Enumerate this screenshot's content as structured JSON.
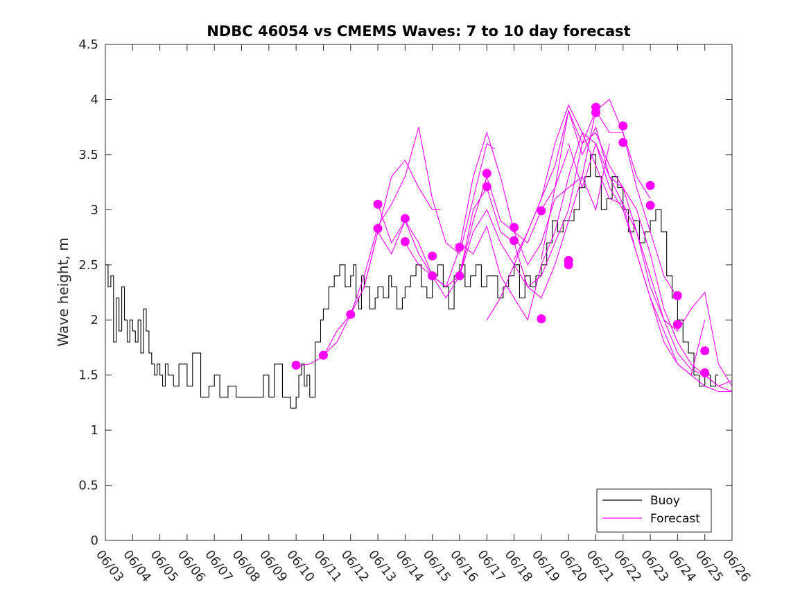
{
  "chart_data": {
    "type": "line",
    "title": "NDBC 46054 vs CMEMS Waves: 7 to 10 day forecast",
    "xlabel": "",
    "ylabel": "Wave height, m",
    "xlim": [
      0,
      23
    ],
    "ylim": [
      0,
      4.5
    ],
    "x_ticks": [
      "06/03",
      "06/04",
      "06/05",
      "06/06",
      "06/07",
      "06/08",
      "06/09",
      "06/10",
      "06/11",
      "06/12",
      "06/13",
      "06/14",
      "06/15",
      "06/16",
      "06/17",
      "06/18",
      "06/19",
      "06/20",
      "06/21",
      "06/22",
      "06/23",
      "06/24",
      "06/25",
      "06/26"
    ],
    "y_ticks": [
      "0",
      "0.5",
      "1",
      "1.5",
      "2",
      "2.5",
      "3",
      "3.5",
      "4",
      "4.5"
    ],
    "legend": {
      "position": "bottom-right",
      "entries": [
        "Buoy",
        "Forecast"
      ]
    },
    "grid": false,
    "colors": {
      "buoy": "#000000",
      "forecast": "#ff00ff"
    },
    "series": [
      {
        "name": "Buoy",
        "x": [
          0,
          0.1,
          0.2,
          0.3,
          0.4,
          0.5,
          0.6,
          0.7,
          0.8,
          0.9,
          1.0,
          1.1,
          1.2,
          1.3,
          1.4,
          1.5,
          1.6,
          1.7,
          1.8,
          1.9,
          2.0,
          2.1,
          2.2,
          2.3,
          2.5,
          2.7,
          3.0,
          3.2,
          3.5,
          3.8,
          4.0,
          4.2,
          4.5,
          4.8,
          5.0,
          5.2,
          5.5,
          5.8,
          6.0,
          6.2,
          6.5,
          6.8,
          7.0,
          7.1,
          7.2,
          7.3,
          7.4,
          7.5,
          7.7,
          7.9,
          8.0,
          8.2,
          8.4,
          8.6,
          8.8,
          9.0,
          9.1,
          9.2,
          9.3,
          9.4,
          9.5,
          9.7,
          9.9,
          10.0,
          10.2,
          10.4,
          10.5,
          10.7,
          10.9,
          11.0,
          11.2,
          11.4,
          11.6,
          11.8,
          12.0,
          12.2,
          12.4,
          12.6,
          12.8,
          13.0,
          13.2,
          13.4,
          13.6,
          13.8,
          14.0,
          14.2,
          14.4,
          14.6,
          14.8,
          15.0,
          15.2,
          15.4,
          15.6,
          15.8,
          16.0,
          16.2,
          16.4,
          16.6,
          16.8,
          17.0,
          17.2,
          17.4,
          17.6,
          17.8,
          18.0,
          18.2,
          18.4,
          18.6,
          18.8,
          19.0,
          19.2,
          19.4,
          19.6,
          19.8,
          20.0,
          20.2,
          20.4,
          20.6,
          20.8,
          21.0,
          21.2,
          21.4,
          21.6,
          21.8,
          22.0,
          22.2,
          22.4,
          22.5
        ],
        "y": [
          2.5,
          2.3,
          2.4,
          1.8,
          2.2,
          1.9,
          2.3,
          2.0,
          1.8,
          2.0,
          1.9,
          1.8,
          2.0,
          1.7,
          2.1,
          1.9,
          1.7,
          1.6,
          1.5,
          1.6,
          1.5,
          1.4,
          1.6,
          1.5,
          1.4,
          1.6,
          1.4,
          1.7,
          1.3,
          1.4,
          1.5,
          1.3,
          1.4,
          1.3,
          1.3,
          1.3,
          1.3,
          1.5,
          1.3,
          1.6,
          1.3,
          1.2,
          1.3,
          1.5,
          1.6,
          1.4,
          1.5,
          1.3,
          1.8,
          2.0,
          2.1,
          2.3,
          2.4,
          2.5,
          2.3,
          2.4,
          2.5,
          2.2,
          2.1,
          2.4,
          2.3,
          2.1,
          2.2,
          2.3,
          2.2,
          2.4,
          2.3,
          2.1,
          2.2,
          2.3,
          2.4,
          2.5,
          2.3,
          2.2,
          2.4,
          2.5,
          2.3,
          2.1,
          2.4,
          2.5,
          2.3,
          2.4,
          2.5,
          2.3,
          2.4,
          2.4,
          2.2,
          2.3,
          2.4,
          2.5,
          2.2,
          2.4,
          2.3,
          2.4,
          2.5,
          2.7,
          2.9,
          2.8,
          2.9,
          2.9,
          3.0,
          3.2,
          3.3,
          3.5,
          3.3,
          3.0,
          3.1,
          3.3,
          3.2,
          3.0,
          2.8,
          2.9,
          2.7,
          2.8,
          2.9,
          3.0,
          2.8,
          2.4,
          2.2,
          2.0,
          1.8,
          1.7,
          1.5,
          1.4,
          1.5,
          1.4,
          1.5,
          1.5
        ]
      },
      {
        "name": "Forecast",
        "lines": [
          {
            "x": [
              7.0,
              7.5,
              8.0,
              8.5,
              9.0,
              9.5,
              10.0,
              10.5,
              11.0,
              11.5,
              12.0,
              12.3
            ],
            "y": [
              1.58,
              1.6,
              1.67,
              1.9,
              2.05,
              2.3,
              2.8,
              3.3,
              3.45,
              3.2,
              3.0,
              3.0
            ]
          },
          {
            "x": [
              8.0,
              8.5,
              9.0,
              9.5,
              10.0,
              10.5,
              11.0,
              11.5,
              12.0,
              12.5,
              13.0,
              13.5,
              14.0,
              14.3
            ],
            "y": [
              1.68,
              1.8,
              2.05,
              2.4,
              2.85,
              3.05,
              3.3,
              3.75,
              3.1,
              2.7,
              2.6,
              3.1,
              3.6,
              3.55
            ]
          },
          {
            "x": [
              9.0,
              9.5,
              10.0,
              10.5,
              11.0,
              11.5,
              12.0,
              12.5,
              13.0,
              13.5,
              14.0,
              14.5,
              15.0,
              15.5,
              16.0,
              16.5,
              17.0
            ],
            "y": [
              2.05,
              2.3,
              2.8,
              2.6,
              2.9,
              2.7,
              2.4,
              2.3,
              2.65,
              3.3,
              3.7,
              3.3,
              2.8,
              2.7,
              3.0,
              3.2,
              3.55
            ]
          },
          {
            "x": [
              10.0,
              10.5,
              11.0,
              11.5,
              12.0,
              12.5,
              13.0,
              13.5,
              14.0,
              14.5,
              15.0,
              15.5,
              16.0,
              16.5,
              17.0,
              17.5,
              18.0,
              18.5
            ],
            "y": [
              3.05,
              2.7,
              2.9,
              2.6,
              2.4,
              2.2,
              2.4,
              2.9,
              3.3,
              2.9,
              2.8,
              2.5,
              2.7,
              3.1,
              3.2,
              3.3,
              3.0,
              3.6
            ]
          },
          {
            "x": [
              11.0,
              11.5,
              12.0,
              12.5,
              13.0,
              13.5,
              14.0,
              14.5,
              15.0,
              15.5,
              16.0,
              16.5,
              17.0,
              17.5,
              18.0,
              18.5,
              19.0,
              19.5,
              20.0
            ],
            "y": [
              2.7,
              2.5,
              2.4,
              2.3,
              2.4,
              3.0,
              3.2,
              2.8,
              2.7,
              2.3,
              2.2,
              2.5,
              2.9,
              3.3,
              3.9,
              4.0,
              3.7,
              3.3,
              3.1
            ]
          },
          {
            "x": [
              12.0,
              12.5,
              13.0,
              13.5,
              14.0,
              14.5,
              15.0,
              15.5,
              16.0,
              16.5,
              17.0,
              17.5,
              18.0,
              18.5,
              19.0,
              19.5,
              20.0,
              20.5,
              21.0
            ],
            "y": [
              2.4,
              2.3,
              2.4,
              2.8,
              3.0,
              2.7,
              2.5,
              2.3,
              2.4,
              2.7,
              3.0,
              3.6,
              3.9,
              3.7,
              3.7,
              3.2,
              2.8,
              2.4,
              2.2
            ]
          },
          {
            "x": [
              13.0,
              13.5,
              14.0,
              14.5,
              15.0,
              15.5,
              16.0,
              16.5,
              17.0,
              17.5,
              18.0,
              18.5,
              19.0,
              19.5,
              20.0,
              20.5,
              21.0,
              21.5,
              22.0
            ],
            "y": [
              2.7,
              2.6,
              2.85,
              2.4,
              2.2,
              2.0,
              2.5,
              2.8,
              3.3,
              3.7,
              3.6,
              3.2,
              3.0,
              2.6,
              2.2,
              1.8,
              1.6,
              1.5,
              2.0
            ]
          },
          {
            "x": [
              14.0,
              14.5,
              15.0,
              15.5,
              16.0,
              16.5,
              17.0,
              17.5,
              18.0,
              18.5,
              19.0,
              19.5,
              20.0,
              20.5,
              21.0,
              21.5,
              22.0,
              22.5,
              23.0
            ],
            "y": [
              2.0,
              2.2,
              2.5,
              2.8,
              3.1,
              3.4,
              3.9,
              3.6,
              3.7,
              3.4,
              3.2,
              3.0,
              2.6,
              2.1,
              1.8,
              1.6,
              1.5,
              1.4,
              1.35
            ]
          },
          {
            "x": [
              15.0,
              15.5,
              16.0,
              16.5,
              17.0,
              17.5,
              18.0,
              18.5,
              19.0,
              19.5,
              20.0,
              20.5,
              21.0,
              21.5,
              22.0,
              22.5,
              23.0
            ],
            "y": [
              2.55,
              2.8,
              3.1,
              3.6,
              3.95,
              3.7,
              3.4,
              3.1,
              3.05,
              2.8,
              2.4,
              2.0,
              1.9,
              2.1,
              2.25,
              1.6,
              1.4
            ]
          },
          {
            "x": [
              16.0,
              16.5,
              17.0,
              17.5,
              18.0,
              18.5,
              19.0,
              19.5,
              20.0,
              20.5,
              21.0,
              21.5,
              22.0,
              22.5,
              23.0
            ],
            "y": [
              2.55,
              3.2,
              3.9,
              3.5,
              3.75,
              3.3,
              3.05,
              2.6,
              2.2,
              1.9,
              1.6,
              1.5,
              1.4,
              1.35,
              1.35
            ]
          },
          {
            "x": [
              17.0,
              17.5,
              18.0,
              18.5,
              19.0,
              19.5,
              20.0,
              20.5,
              21.0,
              21.5,
              22.0,
              22.5,
              23.0
            ],
            "y": [
              3.6,
              3.2,
              3.6,
              3.3,
              3.2,
              2.8,
              2.3,
              2.0,
              1.7,
              1.55,
              1.5,
              1.4,
              1.45
            ]
          }
        ],
        "markers": {
          "x": [
            7.0,
            8.0,
            9.0,
            10.0,
            10.0,
            11.0,
            11.0,
            12.0,
            12.0,
            13.0,
            13.0,
            14.0,
            14.0,
            15.0,
            15.0,
            16.0,
            16.0,
            17.0,
            17.0,
            18.0,
            18.0,
            19.0,
            19.0,
            20.0,
            20.0,
            21.0,
            21.0,
            22.0,
            22.0
          ],
          "y": [
            1.59,
            1.68,
            2.05,
            3.05,
            2.83,
            2.92,
            2.71,
            2.58,
            2.4,
            2.66,
            2.4,
            3.33,
            3.21,
            2.84,
            2.72,
            2.99,
            2.01,
            2.5,
            2.54,
            3.93,
            3.88,
            3.76,
            3.61,
            3.22,
            3.04,
            2.22,
            1.96,
            1.72,
            1.52
          ]
        }
      }
    ]
  }
}
